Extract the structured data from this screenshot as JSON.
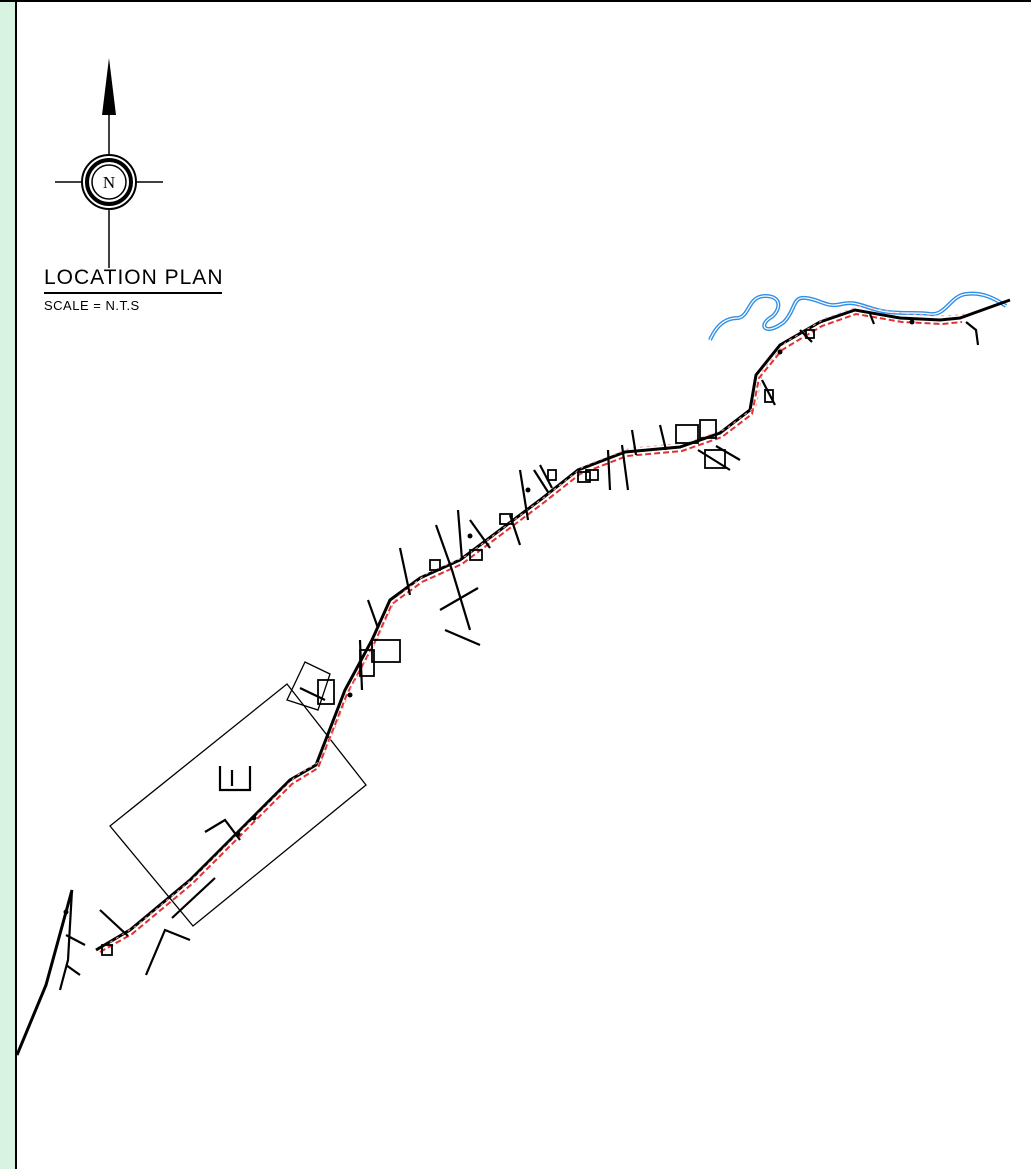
{
  "plan": {
    "title": "LOCATION PLAN",
    "scale": "SCALE = N.T.S"
  },
  "north_arrow": {
    "letter": "N"
  },
  "colors": {
    "road": "#000000",
    "alignment": "#e03030",
    "river": "#2f8fe6",
    "strip": "#d9f3e2"
  },
  "icons": [
    "north-arrow-icon",
    "compass-rose-icon"
  ]
}
